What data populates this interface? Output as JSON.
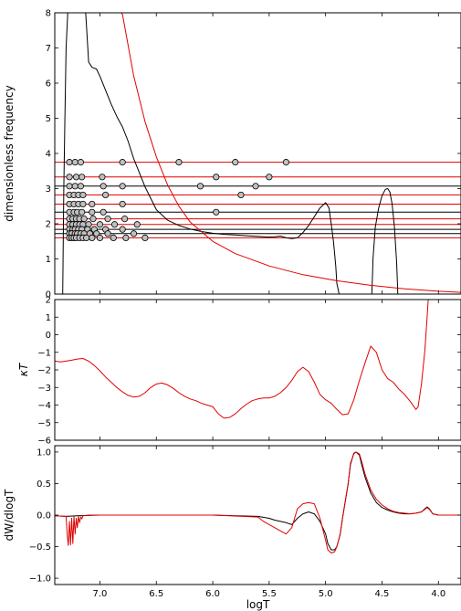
{
  "chart_data": [
    {
      "type": "line",
      "ylabel": "dimensionless frequency",
      "xlim": [
        7.4,
        3.8
      ],
      "ylim": [
        0,
        8
      ],
      "yticks": [
        "0",
        "1",
        "2",
        "3",
        "4",
        "5",
        "6",
        "7",
        "8"
      ],
      "series": [
        {
          "color": "#000000",
          "x": [
            7.33,
            7.325,
            7.32,
            7.31,
            7.3,
            7.285,
            7.27,
            7.25,
            7.23,
            7.21,
            7.19,
            7.17,
            7.15,
            7.13,
            7.1,
            7.07,
            7.03,
            7.0,
            6.95,
            6.9,
            6.85,
            6.8,
            6.75,
            6.7,
            6.6,
            6.5,
            6.4,
            6.3,
            6.2,
            6.1,
            6.0,
            5.9,
            5.8,
            5.7,
            5.6,
            5.5,
            5.45,
            5.4,
            5.35,
            5.3,
            5.25,
            5.2,
            5.15,
            5.1,
            5.05,
            5.0,
            4.97,
            4.95,
            4.93,
            4.91,
            4.9,
            4.88,
            4.87,
            4.86
          ],
          "y": [
            0,
            1.5,
            3,
            5,
            7,
            8,
            8.2,
            8.2,
            8.2,
            8.2,
            8.2,
            8.2,
            8.2,
            8.2,
            6.6,
            6.45,
            6.4,
            6.2,
            5.8,
            5.4,
            5.05,
            4.75,
            4.35,
            3.85,
            3.05,
            2.4,
            2.1,
            1.95,
            1.85,
            1.78,
            1.73,
            1.7,
            1.68,
            1.66,
            1.64,
            1.62,
            1.63,
            1.65,
            1.6,
            1.58,
            1.6,
            1.75,
            1.95,
            2.2,
            2.45,
            2.6,
            2.45,
            2.0,
            1.5,
            0.8,
            0.3,
            0,
            0,
            0
          ]
        },
        {
          "color": "#000000",
          "x": [
            4.59,
            4.585,
            4.58,
            4.56,
            4.53,
            4.5,
            4.47,
            4.45,
            4.43,
            4.41,
            4.39,
            4.37,
            4.36
          ],
          "y": [
            0,
            0.5,
            1.0,
            1.9,
            2.45,
            2.8,
            2.98,
            3.0,
            2.9,
            2.55,
            1.9,
            0.9,
            0
          ]
        },
        {
          "color": "#e00000",
          "x": [
            7.28,
            7.25,
            7.2,
            7.15,
            7.1,
            7.05,
            7.0,
            6.95,
            6.9,
            6.85,
            6.8,
            6.7,
            6.6,
            6.5,
            6.4,
            6.3,
            6.2,
            6.0,
            5.8,
            5.5,
            5.2,
            4.9,
            4.6,
            4.3,
            4.0,
            3.8
          ],
          "y": [
            8.2,
            8.2,
            8.2,
            8.2,
            8.2,
            8.2,
            8.2,
            8.2,
            8.2,
            8.2,
            7.95,
            6.2,
            4.9,
            3.9,
            3.1,
            2.5,
            2.05,
            1.5,
            1.15,
            0.8,
            0.55,
            0.38,
            0.25,
            0.15,
            0.08,
            0.05
          ]
        }
      ],
      "hlines": [
        {
          "y": 3.75,
          "color": "#e00000"
        },
        {
          "y": 3.33,
          "color": "#e00000"
        },
        {
          "y": 3.07,
          "color": "#000000"
        },
        {
          "y": 2.82,
          "color": "#e00000"
        },
        {
          "y": 2.56,
          "color": "#e00000"
        },
        {
          "y": 2.33,
          "color": "#000000"
        },
        {
          "y": 2.14,
          "color": "#e00000"
        },
        {
          "y": 1.98,
          "color": "#e00000"
        },
        {
          "y": 1.84,
          "color": "#000000"
        },
        {
          "y": 1.72,
          "color": "#000000"
        },
        {
          "y": 1.6,
          "color": "#e00000"
        }
      ],
      "markers": [
        {
          "y": 3.75,
          "x": [
            7.27,
            7.22,
            7.17,
            6.8,
            6.3,
            5.8,
            5.35
          ]
        },
        {
          "y": 3.33,
          "x": [
            7.27,
            7.21,
            7.16,
            6.98,
            5.97,
            5.5
          ]
        },
        {
          "y": 3.07,
          "x": [
            7.27,
            7.22,
            7.17,
            6.97,
            6.8,
            6.11,
            5.62
          ]
        },
        {
          "y": 2.82,
          "x": [
            7.27,
            7.23,
            7.19,
            7.15,
            6.95,
            5.75
          ]
        },
        {
          "y": 2.56,
          "x": [
            7.27,
            7.23,
            7.19,
            7.15,
            7.07,
            6.8
          ]
        },
        {
          "y": 2.33,
          "x": [
            7.27,
            7.23,
            7.2,
            7.16,
            7.07,
            6.97,
            5.97
          ]
        },
        {
          "y": 2.14,
          "x": [
            7.27,
            7.24,
            7.21,
            7.18,
            7.14,
            7.06,
            6.93,
            6.78
          ]
        },
        {
          "y": 1.98,
          "x": [
            7.27,
            7.24,
            7.21,
            7.18,
            7.15,
            7.1,
            7.0,
            6.87,
            6.67
          ]
        },
        {
          "y": 1.84,
          "x": [
            7.27,
            7.24,
            7.22,
            7.19,
            7.16,
            7.11,
            7.05,
            6.95,
            6.8
          ]
        },
        {
          "y": 1.72,
          "x": [
            7.27,
            7.25,
            7.22,
            7.2,
            7.17,
            7.14,
            7.09,
            7.03,
            6.93,
            6.7
          ]
        },
        {
          "y": 1.6,
          "x": [
            7.27,
            7.25,
            7.23,
            7.21,
            7.18,
            7.15,
            7.12,
            7.07,
            7.0,
            6.88,
            6.77,
            6.6
          ]
        }
      ]
    },
    {
      "type": "line",
      "ylabel": "κT",
      "xlim": [
        7.4,
        3.8
      ],
      "ylim": [
        -6,
        2
      ],
      "yticks": [
        "−6",
        "−5",
        "−4",
        "−3",
        "−2",
        "−1",
        "0",
        "1",
        "2"
      ],
      "series": [
        {
          "color": "#e00000",
          "x": [
            7.4,
            7.35,
            7.3,
            7.25,
            7.2,
            7.15,
            7.1,
            7.05,
            7.0,
            6.95,
            6.9,
            6.85,
            6.8,
            6.75,
            6.7,
            6.65,
            6.6,
            6.55,
            6.5,
            6.45,
            6.4,
            6.35,
            6.3,
            6.25,
            6.2,
            6.15,
            6.1,
            6.05,
            6.0,
            5.95,
            5.9,
            5.85,
            5.8,
            5.75,
            5.7,
            5.65,
            5.6,
            5.55,
            5.5,
            5.45,
            5.4,
            5.35,
            5.3,
            5.25,
            5.2,
            5.15,
            5.1,
            5.05,
            5.0,
            4.95,
            4.9,
            4.85,
            4.8,
            4.75,
            4.7,
            4.65,
            4.6,
            4.55,
            4.5,
            4.45,
            4.4,
            4.35,
            4.3,
            4.25,
            4.2,
            4.18,
            4.15,
            4.12,
            4.1,
            4.09
          ],
          "y": [
            -1.5,
            -1.55,
            -1.5,
            -1.45,
            -1.38,
            -1.35,
            -1.5,
            -1.75,
            -2.05,
            -2.4,
            -2.7,
            -3.0,
            -3.25,
            -3.45,
            -3.55,
            -3.5,
            -3.3,
            -3.0,
            -2.8,
            -2.75,
            -2.85,
            -3.05,
            -3.3,
            -3.5,
            -3.65,
            -3.75,
            -3.9,
            -4.0,
            -4.1,
            -4.5,
            -4.75,
            -4.7,
            -4.5,
            -4.2,
            -3.95,
            -3.75,
            -3.65,
            -3.6,
            -3.6,
            -3.5,
            -3.3,
            -3.0,
            -2.6,
            -2.1,
            -1.85,
            -2.1,
            -2.7,
            -3.4,
            -3.7,
            -3.9,
            -4.25,
            -4.55,
            -4.5,
            -3.7,
            -2.6,
            -1.6,
            -0.65,
            -1.0,
            -2.0,
            -2.5,
            -2.7,
            -3.1,
            -3.4,
            -3.8,
            -4.25,
            -4.1,
            -2.8,
            -0.9,
            1.0,
            2.1
          ]
        }
      ]
    },
    {
      "type": "line",
      "ylabel": "dW/dlogT",
      "xlabel": "logT",
      "xlim": [
        7.4,
        3.8
      ],
      "ylim": [
        -1.1,
        1.1
      ],
      "yticks": [
        "−1.0",
        "−0.5",
        "0.0",
        "0.5",
        "1.0"
      ],
      "xticks": [
        "7.0",
        "6.5",
        "6.0",
        "5.5",
        "5.0",
        "4.5",
        "4.0"
      ],
      "series": [
        {
          "color": "#000000",
          "x": [
            7.4,
            7.3,
            7.2,
            7.0,
            6.5,
            6.0,
            5.6,
            5.5,
            5.45,
            5.4,
            5.35,
            5.3,
            5.25,
            5.2,
            5.15,
            5.1,
            5.05,
            5.0,
            4.98,
            4.95,
            4.92,
            4.9,
            4.87,
            4.85,
            4.8,
            4.78,
            4.75,
            4.73,
            4.7,
            4.68,
            4.65,
            4.6,
            4.55,
            4.5,
            4.45,
            4.4,
            4.35,
            4.3,
            4.25,
            4.2,
            4.15,
            4.12,
            4.1,
            4.08,
            4.05,
            4.0,
            3.9,
            3.8
          ],
          "y": [
            -0.01,
            -0.02,
            -0.01,
            0.0,
            0.0,
            0.0,
            -0.02,
            -0.05,
            -0.08,
            -0.1,
            -0.12,
            -0.15,
            -0.05,
            0.02,
            0.05,
            0.02,
            -0.1,
            -0.3,
            -0.45,
            -0.55,
            -0.55,
            -0.5,
            -0.3,
            -0.05,
            0.5,
            0.8,
            0.98,
            1.0,
            0.95,
            0.8,
            0.6,
            0.35,
            0.2,
            0.12,
            0.08,
            0.05,
            0.03,
            0.02,
            0.02,
            0.03,
            0.05,
            0.1,
            0.13,
            0.1,
            0.02,
            0.0,
            0.0,
            0.0
          ]
        },
        {
          "color": "#e00000",
          "x": [
            7.4,
            7.3,
            7.29,
            7.28,
            7.27,
            7.26,
            7.25,
            7.24,
            7.23,
            7.22,
            7.21,
            7.2,
            7.19,
            7.18,
            7.17,
            7.16,
            7.15,
            7.1,
            7.0,
            6.5,
            6.0,
            5.6,
            5.55,
            5.5,
            5.45,
            5.4,
            5.35,
            5.3,
            5.25,
            5.2,
            5.15,
            5.1,
            5.05,
            5.0,
            4.98,
            4.95,
            4.92,
            4.9,
            4.87,
            4.85,
            4.8,
            4.78,
            4.75,
            4.73,
            4.7,
            4.68,
            4.65,
            4.6,
            4.55,
            4.5,
            4.45,
            4.4,
            4.35,
            4.3,
            4.25,
            4.2,
            4.15,
            4.12,
            4.1,
            4.08,
            4.05,
            4.0,
            3.9,
            3.8
          ],
          "y": [
            -0.01,
            -0.02,
            -0.3,
            -0.48,
            -0.1,
            -0.47,
            -0.05,
            -0.45,
            -0.02,
            -0.3,
            -0.05,
            -0.2,
            -0.02,
            -0.12,
            -0.03,
            -0.06,
            -0.01,
            0.0,
            0.0,
            0.0,
            0.0,
            -0.03,
            -0.1,
            -0.15,
            -0.2,
            -0.25,
            -0.3,
            -0.2,
            0.1,
            0.18,
            0.2,
            0.18,
            -0.05,
            -0.4,
            -0.55,
            -0.6,
            -0.58,
            -0.5,
            -0.3,
            -0.05,
            0.5,
            0.82,
            0.97,
            1.0,
            0.97,
            0.85,
            0.65,
            0.4,
            0.25,
            0.16,
            0.1,
            0.06,
            0.04,
            0.03,
            0.02,
            0.03,
            0.05,
            0.09,
            0.12,
            0.09,
            0.02,
            0.0,
            0.0,
            0.0
          ]
        }
      ]
    }
  ]
}
